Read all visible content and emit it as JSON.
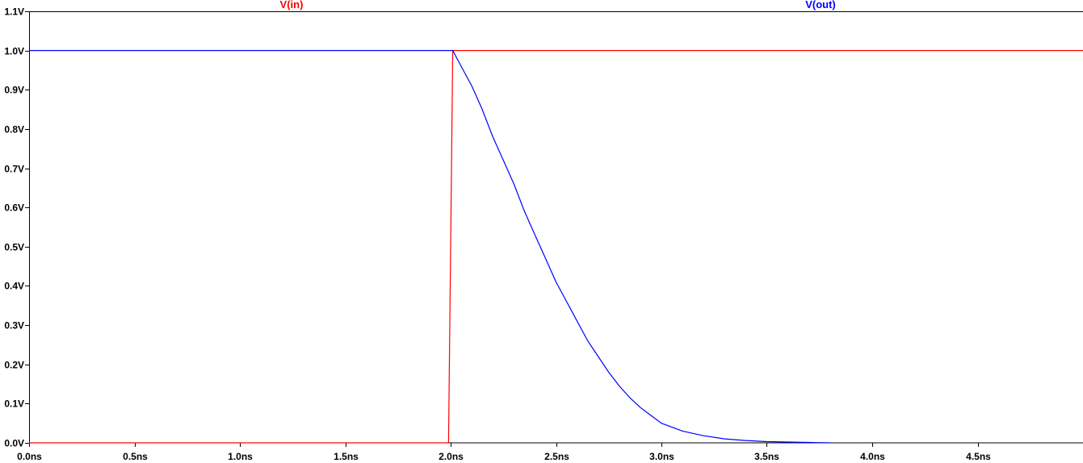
{
  "chart_data": {
    "type": "line",
    "title": "",
    "xlabel": "",
    "ylabel": "",
    "xlim": [
      0,
      5.0
    ],
    "ylim": [
      0,
      1.1
    ],
    "grid": false,
    "legend_position": "top",
    "x_ticks": [
      {
        "value": 0.0,
        "label": "0.0ns"
      },
      {
        "value": 0.5,
        "label": "0.5ns"
      },
      {
        "value": 1.0,
        "label": "1.0ns"
      },
      {
        "value": 1.5,
        "label": "1.5ns"
      },
      {
        "value": 2.0,
        "label": "2.0ns"
      },
      {
        "value": 2.5,
        "label": "2.5ns"
      },
      {
        "value": 3.0,
        "label": "3.0ns"
      },
      {
        "value": 3.5,
        "label": "3.5ns"
      },
      {
        "value": 4.0,
        "label": "4.0ns"
      },
      {
        "value": 4.5,
        "label": "4.5ns"
      }
    ],
    "y_ticks": [
      {
        "value": 0.0,
        "label": "0.0V"
      },
      {
        "value": 0.1,
        "label": "0.1V"
      },
      {
        "value": 0.2,
        "label": "0.2V"
      },
      {
        "value": 0.3,
        "label": "0.3V"
      },
      {
        "value": 0.4,
        "label": "0.4V"
      },
      {
        "value": 0.5,
        "label": "0.5V"
      },
      {
        "value": 0.6,
        "label": "0.6V"
      },
      {
        "value": 0.7,
        "label": "0.7V"
      },
      {
        "value": 0.8,
        "label": "0.8V"
      },
      {
        "value": 0.9,
        "label": "0.9V"
      },
      {
        "value": 1.0,
        "label": "1.0V"
      },
      {
        "value": 1.1,
        "label": "1.1V"
      }
    ],
    "series": [
      {
        "name": "V(in)",
        "color": "#ff0000",
        "x": [
          0.0,
          1.99,
          2.0,
          2.01,
          5.0
        ],
        "y": [
          0.0,
          0.0,
          0.5,
          1.0,
          1.0
        ]
      },
      {
        "name": "V(out)",
        "color": "#0000ff",
        "x": [
          0.0,
          1.99,
          2.0,
          2.01,
          2.05,
          2.1,
          2.15,
          2.2,
          2.25,
          2.3,
          2.35,
          2.4,
          2.45,
          2.5,
          2.55,
          2.6,
          2.65,
          2.7,
          2.75,
          2.8,
          2.85,
          2.9,
          2.95,
          3.0,
          3.1,
          3.2,
          3.3,
          3.4,
          3.5,
          3.6,
          3.7,
          3.8
        ],
        "y": [
          1.0,
          1.0,
          1.0,
          1.0,
          0.96,
          0.91,
          0.85,
          0.78,
          0.72,
          0.66,
          0.59,
          0.53,
          0.47,
          0.41,
          0.36,
          0.31,
          0.26,
          0.22,
          0.18,
          0.145,
          0.115,
          0.09,
          0.07,
          0.05,
          0.03,
          0.018,
          0.01,
          0.006,
          0.003,
          0.002,
          0.001,
          0.0
        ]
      }
    ]
  }
}
